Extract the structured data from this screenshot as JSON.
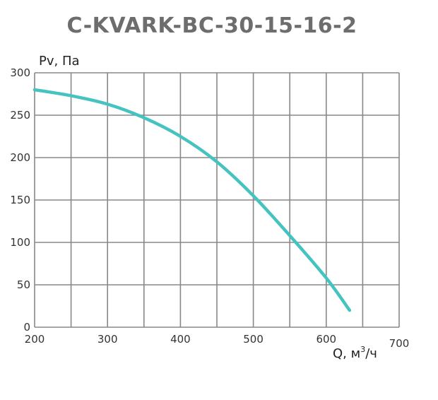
{
  "colors": {
    "grid": "#888888",
    "curve": "#44c3c0",
    "title": "#6d6d6d",
    "text": "#333333"
  },
  "chart_data": {
    "type": "line",
    "title": "C-KVARK-BC-30-15-16-2",
    "xlabel": "Q, м",
    "xlabel_sup": "3",
    "xlabel_suffix": "/ч",
    "ylabel": "Pv, Па",
    "xlim": [
      200,
      700
    ],
    "ylim": [
      0,
      300
    ],
    "x_ticks": [
      200,
      300,
      400,
      500,
      600,
      700
    ],
    "y_ticks": [
      0,
      50,
      100,
      150,
      200,
      250,
      300
    ],
    "x_gridlines": [
      200,
      250,
      300,
      350,
      400,
      450,
      500,
      550,
      600,
      650,
      700
    ],
    "y_gridlines": [
      0,
      50,
      100,
      150,
      200,
      250,
      300
    ],
    "grid": true,
    "series": [
      {
        "x": [
          200,
          250,
          300,
          350,
          400,
          450,
          500,
          550,
          600,
          632
        ],
        "y": [
          280,
          273,
          263,
          247,
          225,
          195,
          155,
          108,
          58,
          20
        ]
      }
    ]
  }
}
